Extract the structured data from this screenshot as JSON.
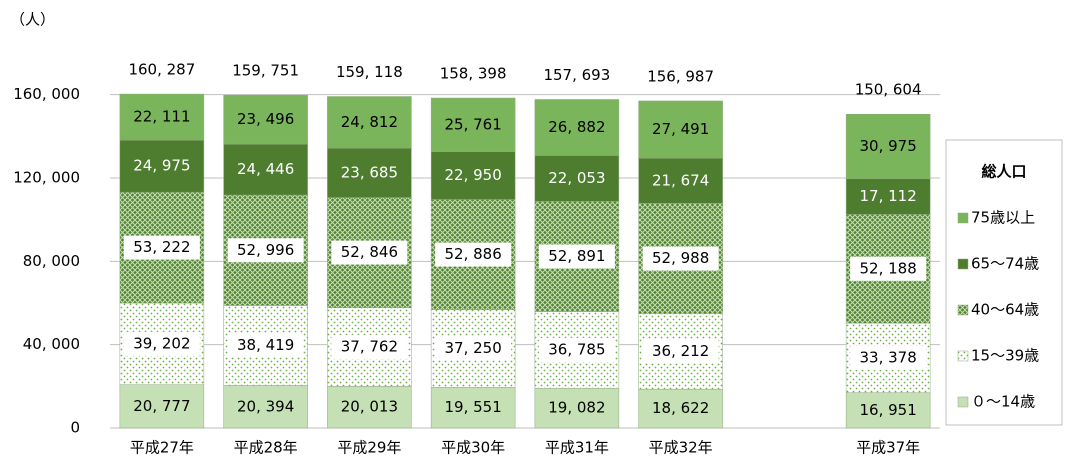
{
  "chart_data": {
    "type": "stacked_bar",
    "unit_label": "（人）",
    "categories": [
      "平成27年",
      "平成28年",
      "平成29年",
      "平成30年",
      "平成31年",
      "平成32年",
      null,
      "平成37年"
    ],
    "series": [
      {
        "name": "０～14歳",
        "color": "#c5e0b4",
        "pattern": "solid",
        "values": [
          20777,
          20394,
          20013,
          19551,
          19082,
          18622,
          null,
          16951
        ],
        "value_labels": [
          "20, 777",
          "20, 394",
          "20, 013",
          "19, 551",
          "19, 082",
          "18, 622",
          null,
          "16, 951"
        ]
      },
      {
        "name": "15～39歳",
        "color": "#70ad47",
        "pattern": "dots",
        "values": [
          39202,
          38419,
          37762,
          37250,
          36785,
          36212,
          null,
          33378
        ],
        "value_labels": [
          "39, 202",
          "38, 419",
          "37, 762",
          "37, 250",
          "36, 785",
          "36, 212",
          null,
          "33, 378"
        ]
      },
      {
        "name": "40～64歳",
        "color": "#548235",
        "pattern": "crosshatch",
        "values": [
          53222,
          52996,
          52846,
          52886,
          52891,
          52988,
          null,
          52188
        ],
        "value_labels": [
          "53, 222",
          "52, 996",
          "52, 846",
          "52, 886",
          "52, 891",
          "52, 988",
          null,
          "52, 188"
        ]
      },
      {
        "name": "65～74歳",
        "color": "#4e7d2f",
        "pattern": "solid",
        "values": [
          24975,
          24446,
          23685,
          22950,
          22053,
          21674,
          null,
          17112
        ],
        "value_labels": [
          "24, 975",
          "24, 446",
          "23, 685",
          "22, 950",
          "22, 053",
          "21, 674",
          null,
          "17, 112"
        ]
      },
      {
        "name": "75歳以上",
        "color": "#7ab55c",
        "pattern": "solid",
        "values": [
          22111,
          23496,
          24812,
          25761,
          26882,
          27491,
          null,
          30975
        ],
        "value_labels": [
          "22, 111",
          "23, 496",
          "24, 812",
          "25, 761",
          "26, 882",
          "27, 491",
          null,
          "30, 975"
        ]
      }
    ],
    "totals": [
      160287,
      159751,
      159118,
      158398,
      157693,
      156987,
      null,
      150604
    ],
    "total_labels": [
      "160, 287",
      "159, 751",
      "159, 118",
      "158, 398",
      "157, 693",
      "156, 987",
      null,
      "150, 604"
    ],
    "ylim": [
      0,
      180000
    ],
    "yticks": [
      0,
      {
        "value": 40000,
        "label": "40, 000"
      },
      {
        "value": 80000,
        "label": "80, 000"
      },
      {
        "value": 120000,
        "label": "120, 000"
      },
      {
        "value": 160000,
        "label": "160, 000"
      }
    ],
    "grid": true,
    "legend": "right",
    "legend_title": "総人口"
  }
}
